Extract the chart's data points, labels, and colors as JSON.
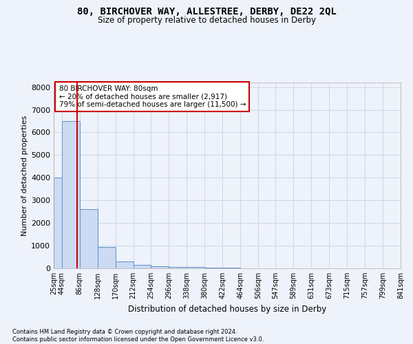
{
  "title": "80, BIRCHOVER WAY, ALLESTREE, DERBY, DE22 2QL",
  "subtitle": "Size of property relative to detached houses in Derby",
  "xlabel": "Distribution of detached houses by size in Derby",
  "ylabel": "Number of detached properties",
  "bin_edges": [
    25,
    44,
    86,
    128,
    170,
    212,
    254,
    296,
    338,
    380,
    422,
    464,
    506,
    547,
    589,
    631,
    673,
    715,
    757,
    799,
    841
  ],
  "bar_heights": [
    4000,
    6500,
    2600,
    950,
    300,
    150,
    80,
    50,
    50,
    40,
    30,
    0,
    0,
    0,
    0,
    0,
    0,
    0,
    0,
    0
  ],
  "bar_color": "#ccdaf2",
  "bar_edge_color": "#5b8fcc",
  "property_size": 80,
  "property_line_color": "#cc0000",
  "annotation_text": "80 BIRCHOVER WAY: 80sqm\n← 20% of detached houses are smaller (2,917)\n79% of semi-detached houses are larger (11,500) →",
  "annotation_box_color": "#ffffff",
  "annotation_box_edge_color": "#cc0000",
  "ylim": [
    0,
    8200
  ],
  "yticks": [
    0,
    1000,
    2000,
    3000,
    4000,
    5000,
    6000,
    7000,
    8000
  ],
  "grid_color": "#c8d4e8",
  "footnote": "Contains HM Land Registry data © Crown copyright and database right 2024.\nContains public sector information licensed under the Open Government Licence v3.0.",
  "bg_color": "#eef2fa",
  "plot_bg_color": "#eef2fa"
}
